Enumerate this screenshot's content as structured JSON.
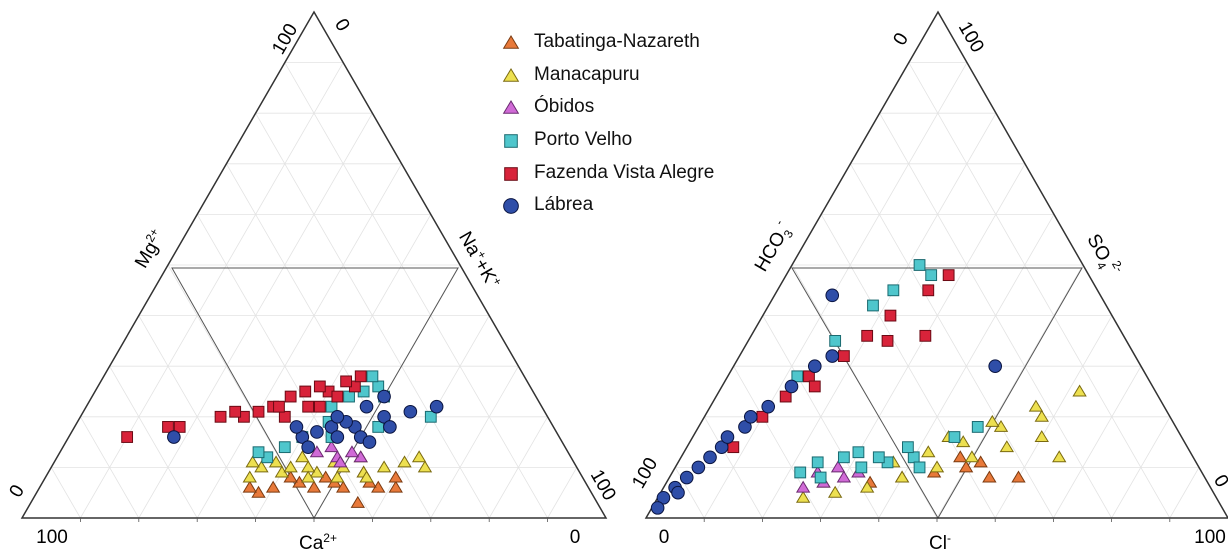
{
  "chart_data": [
    {
      "type": "scatter",
      "subtype": "ternary-cation",
      "axis_labels": {
        "left": "Mg",
        "left_sup": "2+",
        "right": "Na",
        "right_sup": "+",
        "right_mid": "+K",
        "right_sup2": "+",
        "bottom": "Ca",
        "bottom_sup": "2+"
      },
      "tick_labels": {
        "apex_left": "100",
        "apex_right": "0",
        "left_base": "0",
        "bottom_left": "100",
        "bottom_right": "0",
        "right_base": "100"
      },
      "grid": true,
      "series": [
        {
          "name": "Tabatinga-Nazareth",
          "points": [
            [
              61,
              6
            ],
            [
              58,
              6
            ],
            [
              54,
              9
            ],
            [
              50,
              7
            ],
            [
              48,
              8
            ],
            [
              44,
              7
            ],
            [
              40,
              6
            ],
            [
              38,
              5
            ],
            [
              36,
              6
            ],
            [
              60,
              8
            ],
            [
              56,
              7
            ],
            [
              52,
              6
            ],
            [
              47,
              6
            ],
            [
              42,
              8
            ],
            [
              56,
              3
            ]
          ]
        },
        {
          "name": "Manacapuru",
          "points": [
            [
              64,
              10
            ],
            [
              60,
              11
            ],
            [
              57,
              10
            ],
            [
              54,
              9
            ],
            [
              52,
              12
            ],
            [
              50,
              10
            ],
            [
              48,
              11
            ],
            [
              46,
              9
            ],
            [
              44,
              10
            ],
            [
              42,
              12
            ],
            [
              40,
              9
            ],
            [
              38,
              11
            ],
            [
              36,
              10
            ],
            [
              55,
              8
            ],
            [
              45,
              8
            ],
            [
              35,
              8
            ],
            [
              62,
              12
            ],
            [
              34,
              11
            ],
            [
              50,
              8
            ],
            [
              41,
              10
            ]
          ]
        },
        {
          "name": "Óbidos",
          "points": [
            [
              52,
              12
            ],
            [
              50,
              13
            ],
            [
              48,
              12
            ],
            [
              46,
              14
            ],
            [
              44,
              13
            ],
            [
              49,
              11
            ]
          ]
        },
        {
          "name": "Porto Velho",
          "points": [
            [
              50,
              24
            ],
            [
              48,
              26
            ],
            [
              46,
              25
            ],
            [
              44,
              24
            ],
            [
              42,
              22
            ],
            [
              40,
              16
            ],
            [
              38,
              14
            ],
            [
              36,
              12
            ],
            [
              34,
              13
            ],
            [
              60,
              20
            ],
            [
              52,
              18
            ],
            [
              46,
              28
            ],
            [
              45,
              16
            ],
            [
              43,
              19
            ]
          ]
        },
        {
          "name": "Fazenda Vista Alegre",
          "points": [
            [
              44,
              26
            ],
            [
              42,
              27
            ],
            [
              40,
              25
            ],
            [
              38,
              26
            ],
            [
              36,
              25
            ],
            [
              34,
              24
            ],
            [
              32,
              22
            ],
            [
              30,
              21
            ],
            [
              28,
              20
            ],
            [
              26,
              21
            ],
            [
              24,
              20
            ],
            [
              18,
              18
            ],
            [
              16,
              18
            ],
            [
              10,
              16
            ],
            [
              40,
              22
            ],
            [
              35,
              20
            ],
            [
              42,
              24
            ],
            [
              38,
              22
            ],
            [
              33,
              22
            ],
            [
              44,
              28
            ]
          ]
        },
        {
          "name": "Lábrea",
          "points": [
            [
              60,
              22
            ],
            [
              56,
              21
            ],
            [
              52,
              20
            ],
            [
              48,
              18
            ],
            [
              46,
              19
            ],
            [
              44,
              18
            ],
            [
              42,
              17
            ],
            [
              40,
              16
            ],
            [
              54,
              18
            ],
            [
              50,
              16
            ],
            [
              46,
              16
            ],
            [
              42,
              14
            ],
            [
              48,
              22
            ],
            [
              44,
              20
            ],
            [
              50,
              24
            ],
            [
              52,
              15
            ],
            [
              38,
              18
            ],
            [
              18,
              16
            ]
          ]
        }
      ]
    },
    {
      "type": "scatter",
      "subtype": "ternary-anion",
      "axis_labels": {
        "left": "HCO",
        "left_sub": "3",
        "left_sup": "-",
        "right": "SO",
        "right_sub": "4",
        "right_sup": "2-",
        "bottom": "Cl",
        "bottom_sup": "-"
      },
      "tick_labels": {
        "apex_left": "0",
        "apex_right": "100",
        "left_base": "100",
        "bottom_left": "0",
        "bottom_right": "100",
        "right_base": "0"
      },
      "grid": true,
      "series": [
        {
          "name": "Tabatinga-Nazareth",
          "points": [
            [
              55,
              8
            ],
            [
              60,
              8
            ],
            [
              50,
              10
            ],
            [
              45,
              9
            ],
            [
              40,
              8
            ],
            [
              35,
              7
            ],
            [
              52,
              11
            ],
            [
              48,
              12
            ]
          ]
        },
        {
          "name": "Manacapuru",
          "points": [
            [
              65,
              12
            ],
            [
              60,
              16
            ],
            [
              55,
              14
            ],
            [
              50,
              12
            ],
            [
              45,
              10
            ],
            [
              40,
              8
            ],
            [
              35,
              6
            ],
            [
              30,
              5
            ],
            [
              25,
              4
            ],
            [
              58,
              20
            ],
            [
              52,
              18
            ],
            [
              47,
              15
            ],
            [
              42,
              13
            ],
            [
              37,
              11
            ],
            [
              32,
              9
            ],
            [
              27,
              7
            ],
            [
              62,
              25
            ],
            [
              56,
              22
            ],
            [
              50,
              19
            ],
            [
              44,
              16
            ]
          ]
        },
        {
          "name": "Óbidos",
          "points": [
            [
              30,
              8
            ],
            [
              27,
              7
            ],
            [
              25,
              9
            ],
            [
              28,
              10
            ],
            [
              32,
              9
            ],
            [
              24,
              6
            ]
          ]
        },
        {
          "name": "Porto Velho",
          "points": [
            [
              25,
              48
            ],
            [
              22,
              50
            ],
            [
              20,
              45
            ],
            [
              18,
              42
            ],
            [
              15,
              35
            ],
            [
              12,
              28
            ],
            [
              40,
              12
            ],
            [
              36,
              11
            ],
            [
              32,
              10
            ],
            [
              28,
              12
            ],
            [
              24,
              11
            ],
            [
              45,
              16
            ],
            [
              48,
              18
            ],
            [
              26,
              8
            ],
            [
              38,
              14
            ],
            [
              42,
              10
            ],
            [
              30,
              13
            ],
            [
              34,
              12
            ],
            [
              22,
              9
            ]
          ]
        },
        {
          "name": "Fazenda Vista Alegre",
          "points": [
            [
              28,
              48
            ],
            [
              26,
              45
            ],
            [
              22,
              40
            ],
            [
              20,
              36
            ],
            [
              18,
              32
            ],
            [
              14,
              28
            ],
            [
              12,
              24
            ],
            [
              10,
              20
            ],
            [
              8,
              14
            ],
            [
              30,
              36
            ],
            [
              24,
              35
            ],
            [
              16,
              26
            ]
          ]
        },
        {
          "name": "Lábrea",
          "points": [
            [
              10,
              44
            ],
            [
              16,
              32
            ],
            [
              14,
              30
            ],
            [
              12,
              26
            ],
            [
              10,
              22
            ],
            [
              8,
              18
            ],
            [
              6,
              14
            ],
            [
              5,
              12
            ],
            [
              4,
              10
            ],
            [
              3,
              8
            ],
            [
              2,
              6
            ],
            [
              1,
              4
            ],
            [
              1,
              2
            ],
            [
              45,
              30
            ],
            [
              8,
              20
            ],
            [
              6,
              16
            ],
            [
              3,
              5
            ]
          ]
        }
      ]
    }
  ],
  "legend": {
    "items": [
      {
        "label": "Tabatinga-Nazareth",
        "shape": "triangle",
        "fill": "#e8793a",
        "stroke": "#7a3a10"
      },
      {
        "label": "Manacapuru",
        "shape": "triangle",
        "fill": "#ede050",
        "stroke": "#7a6a10"
      },
      {
        "label": "Óbidos",
        "shape": "triangle",
        "fill": "#d06ad6",
        "stroke": "#6a2a70"
      },
      {
        "label": "Porto Velho",
        "shape": "square",
        "fill": "#4fc6cc",
        "stroke": "#1a6a70"
      },
      {
        "label": "Fazenda Vista Alegre",
        "shape": "square",
        "fill": "#d8233a",
        "stroke": "#6a0a14"
      },
      {
        "label": "Lábrea",
        "shape": "circle",
        "fill": "#2f4ea8",
        "stroke": "#0a1440"
      }
    ]
  }
}
